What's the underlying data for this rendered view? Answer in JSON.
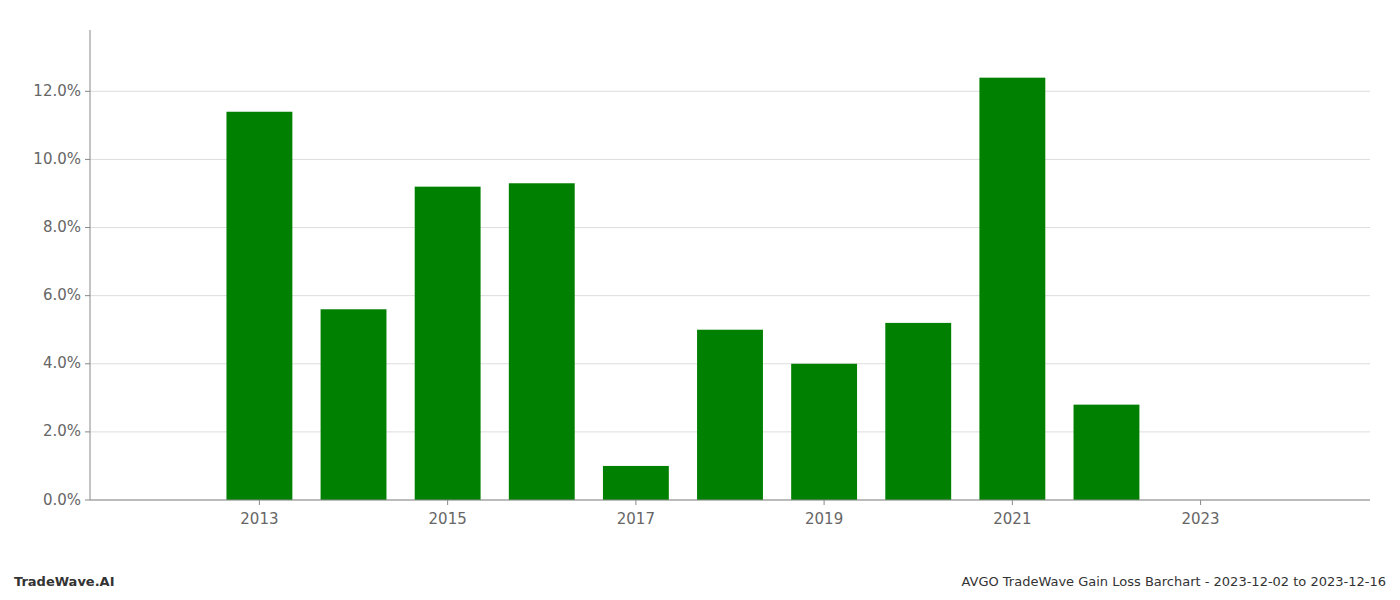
{
  "chart_data": {
    "type": "bar",
    "x": [
      2013,
      2014,
      2015,
      2016,
      2017,
      2018,
      2019,
      2020,
      2021,
      2022
    ],
    "values": [
      0.114,
      0.056,
      0.092,
      0.093,
      0.01,
      0.05,
      0.04,
      0.052,
      0.124,
      0.028
    ],
    "color": "#008000",
    "xlim": [
      2011.2,
      2024.8
    ],
    "xticks": [
      2013,
      2015,
      2017,
      2019,
      2021,
      2023
    ],
    "ylim": [
      0,
      0.138
    ],
    "yticks": [
      {
        "value": 0.0,
        "label": "0.0%"
      },
      {
        "value": 0.02,
        "label": "2.0%"
      },
      {
        "value": 0.04,
        "label": "4.0%"
      },
      {
        "value": 0.06,
        "label": "6.0%"
      },
      {
        "value": 0.08,
        "label": "8.0%"
      },
      {
        "value": 0.1,
        "label": "10.0%"
      },
      {
        "value": 0.12,
        "label": "12.0%"
      }
    ],
    "grid": true,
    "annotations": [
      "TradeWave.AI",
      "AVGO TradeWave Gain Loss Barchart - 2023-12-02 to 2023-12-16"
    ]
  }
}
